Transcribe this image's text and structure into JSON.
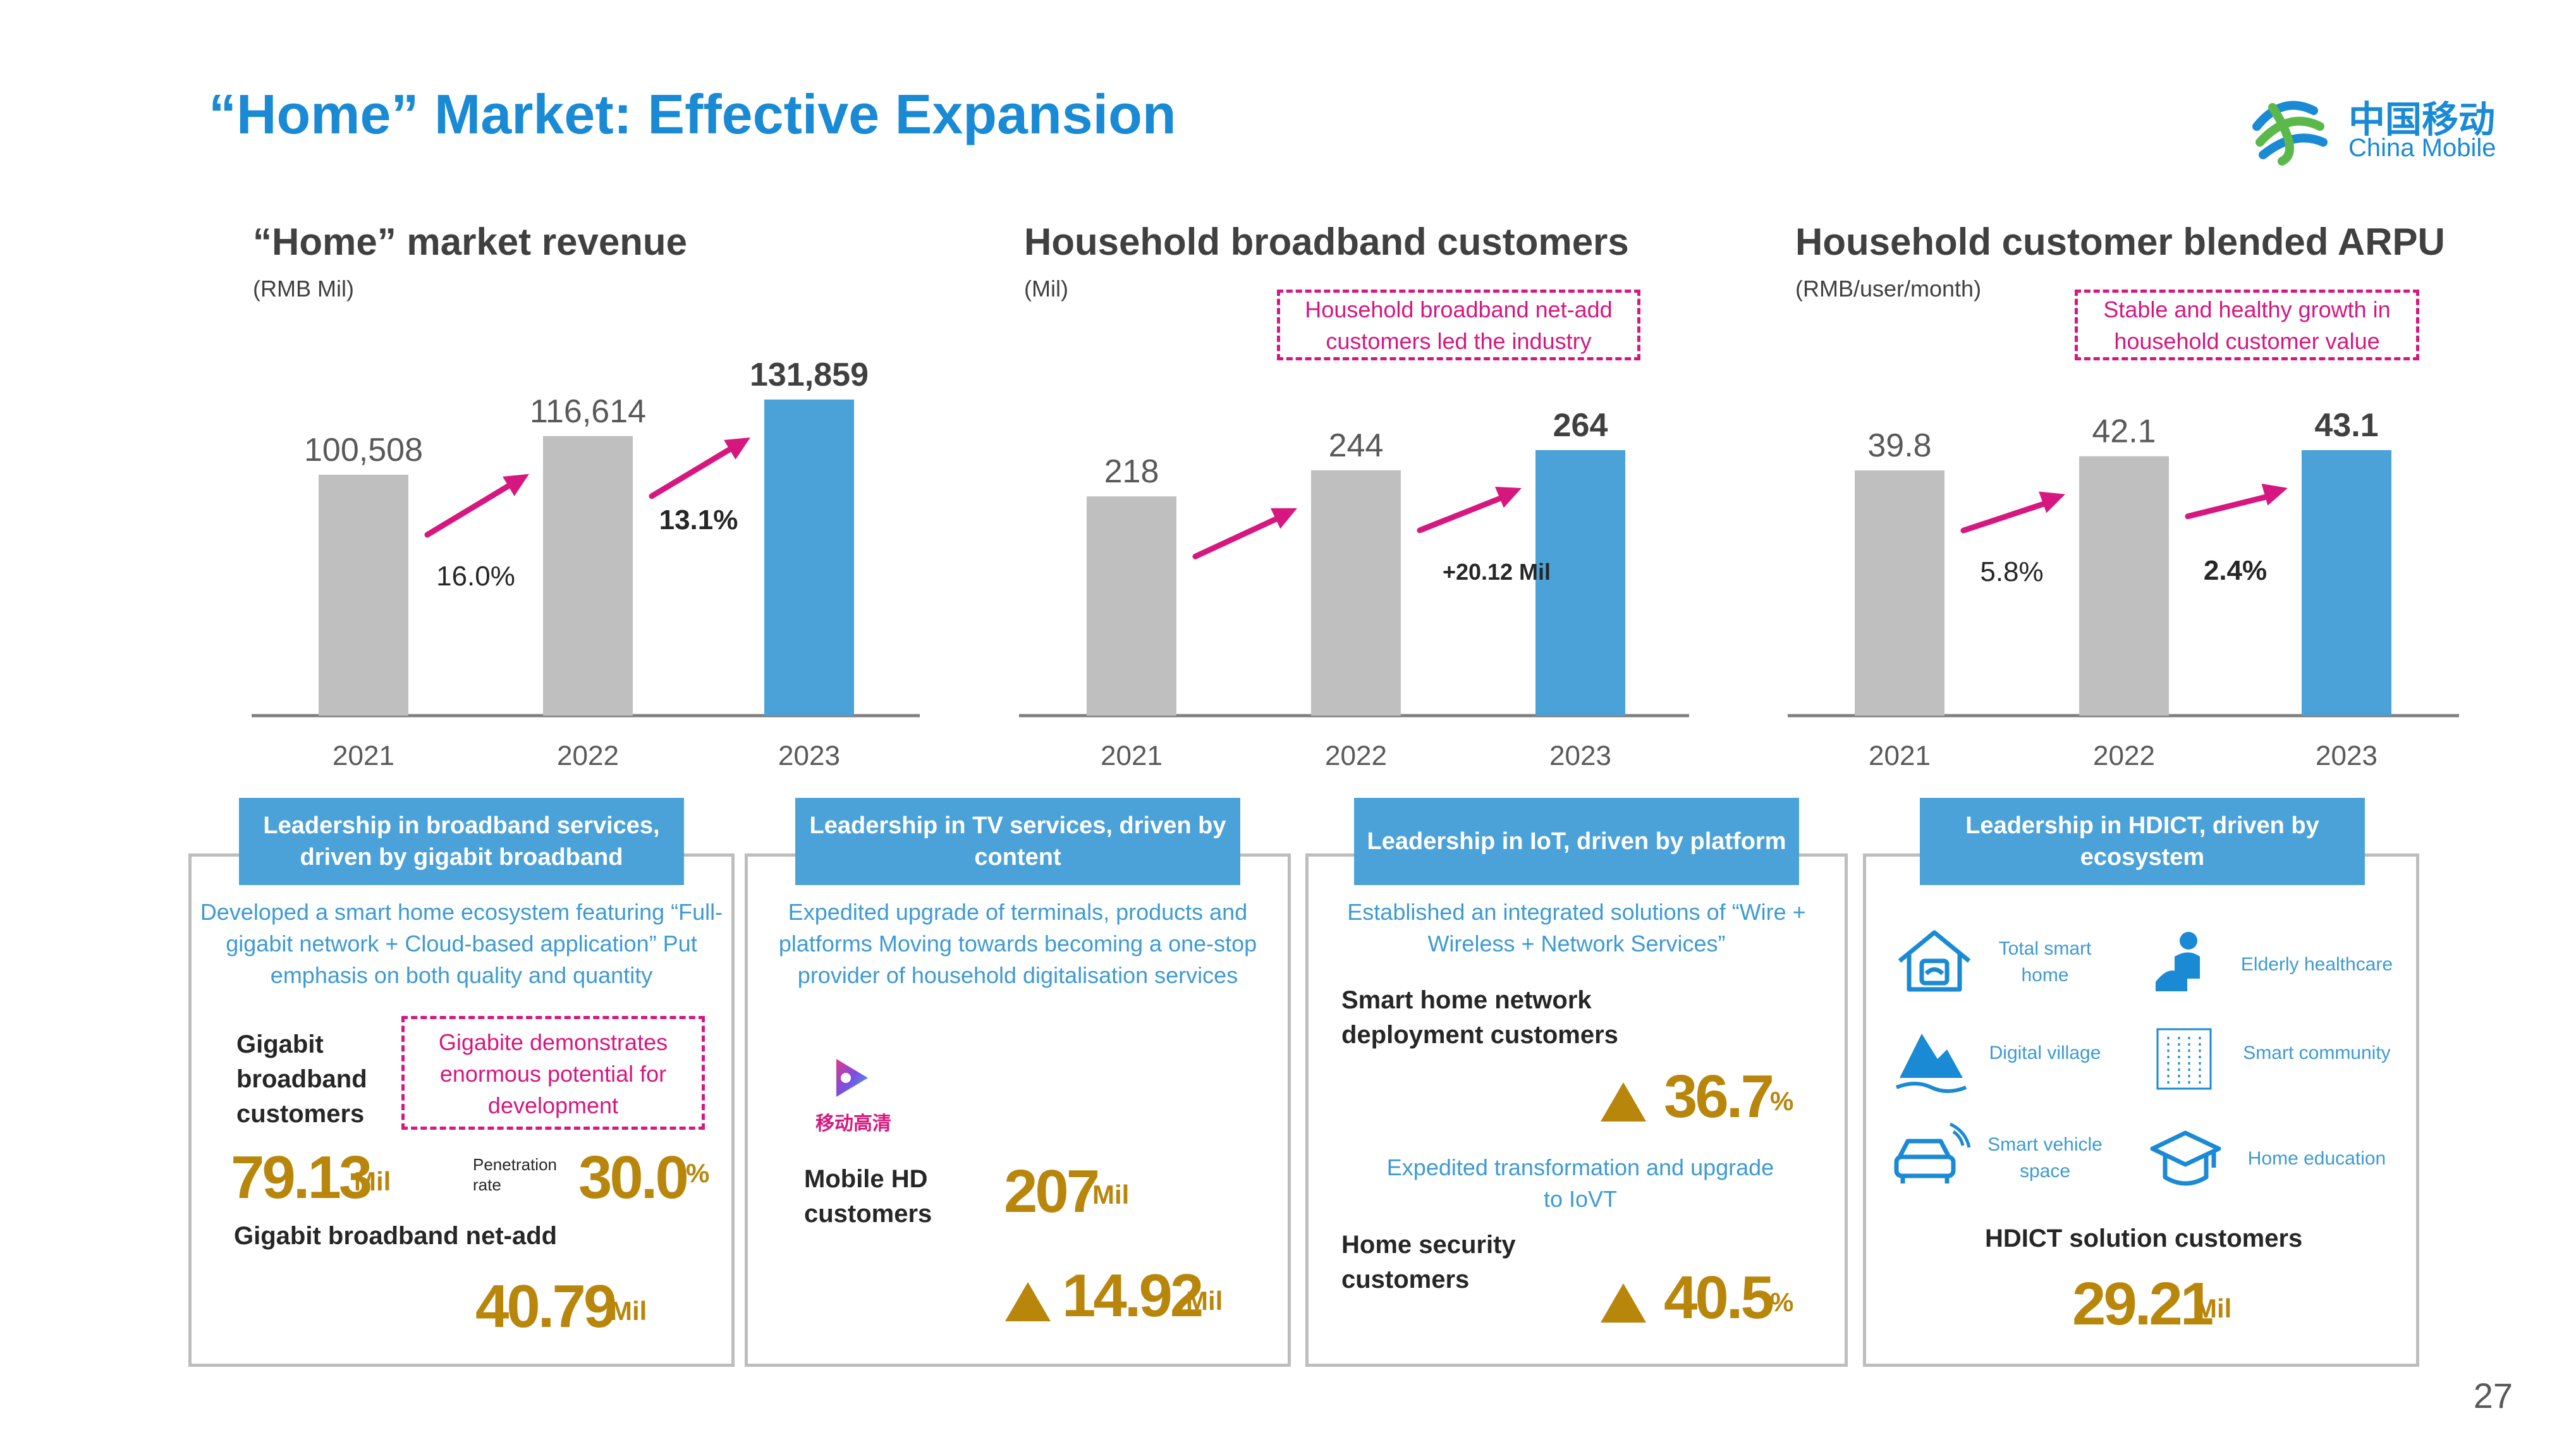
{
  "title": "“Home” Market: Effective Expansion",
  "logo": {
    "cn": "中国移动",
    "en": "China Mobile"
  },
  "page_number": "27",
  "colors": {
    "accent": "#1a8ad4",
    "bar_gray": "#bfbfbf",
    "bar_blue": "#4ba2d8",
    "magenta": "#d6177f",
    "gold": "#b8860b"
  },
  "chart_data": [
    {
      "type": "bar",
      "title": "“Home” market revenue",
      "unit": "(RMB Mil)",
      "categories": [
        "2021",
        "2022",
        "2023"
      ],
      "values": [
        100508,
        116614,
        131859
      ],
      "value_labels": [
        "100,508",
        "116,614",
        "131,859"
      ],
      "growth_labels": [
        "16.0%",
        "13.1%"
      ],
      "ylim": [
        0,
        131859
      ]
    },
    {
      "type": "bar",
      "title": "Household broadband customers",
      "unit": "(Mil)",
      "categories": [
        "2021",
        "2022",
        "2023"
      ],
      "values": [
        218,
        244,
        264
      ],
      "value_labels": [
        "218",
        "244",
        "264"
      ],
      "growth_labels": [
        "",
        "+20.12 Mil"
      ],
      "note": "Household broadband net-add customers led the industry",
      "ylim": [
        0,
        264
      ]
    },
    {
      "type": "bar",
      "title": "Household customer blended ARPU",
      "unit": "(RMB/user/month)",
      "categories": [
        "2021",
        "2022",
        "2023"
      ],
      "values": [
        39.8,
        42.1,
        43.1
      ],
      "value_labels": [
        "39.8",
        "42.1",
        "43.1"
      ],
      "growth_labels": [
        "5.8%",
        "2.4%"
      ],
      "note": "Stable and healthy growth in household customer value",
      "ylim": [
        0,
        43.1
      ]
    }
  ],
  "panels": {
    "broadband": {
      "header": "Leadership in broadband services, driven by gigabit broadband",
      "desc": "Developed a smart home ecosystem featuring “Full-gigabit network + Cloud-based application” Put emphasis on both quality and quantity",
      "gigabit_label": "Gigabit broadband customers",
      "note": "Gigabite demonstrates enormous potential for development",
      "gigabit_value": "79.13",
      "gigabit_unit": "Mil",
      "penetration_label": "Penetration rate",
      "penetration_value": "30.0",
      "penetration_unit": "%",
      "netadd_label": "Gigabit broadband net-add",
      "netadd_value": "40.79",
      "netadd_unit": "Mil"
    },
    "tv": {
      "header": "Leadership in TV services, driven by content",
      "desc": "Expedited upgrade of terminals, products and platforms Moving towards becoming a one-stop provider of household digitalisation services",
      "logo_text": "移动高清",
      "customers_label": "Mobile HD customers",
      "customers_value": "207",
      "customers_unit": "Mil",
      "growth_value": "14.92",
      "growth_unit": "Mil"
    },
    "iot": {
      "header": "Leadership in IoT, driven by platform",
      "desc1": "Established an integrated solutions of “Wire + Wireless + Network Services”",
      "network_label": "Smart home network deployment customers",
      "network_value": "36.7",
      "network_unit": "%",
      "desc2": "Expedited transformation and upgrade to IoVT",
      "security_label": "Home security customers",
      "security_value": "40.5",
      "security_unit": "%"
    },
    "hdict": {
      "header": "Leadership in HDICT, driven by ecosystem",
      "icons": [
        {
          "label": "Total smart home",
          "icon": "house-icon"
        },
        {
          "label": "Elderly healthcare",
          "icon": "elderly-icon"
        },
        {
          "label": "Digital village",
          "icon": "mountain-icon"
        },
        {
          "label": "Smart community",
          "icon": "building-icon"
        },
        {
          "label": "Smart vehicle space",
          "icon": "car-icon"
        },
        {
          "label": "Home education",
          "icon": "graduation-cap-icon"
        }
      ],
      "customers_label": "HDICT solution customers",
      "customers_value": "29.21",
      "customers_unit": "Mil"
    }
  }
}
